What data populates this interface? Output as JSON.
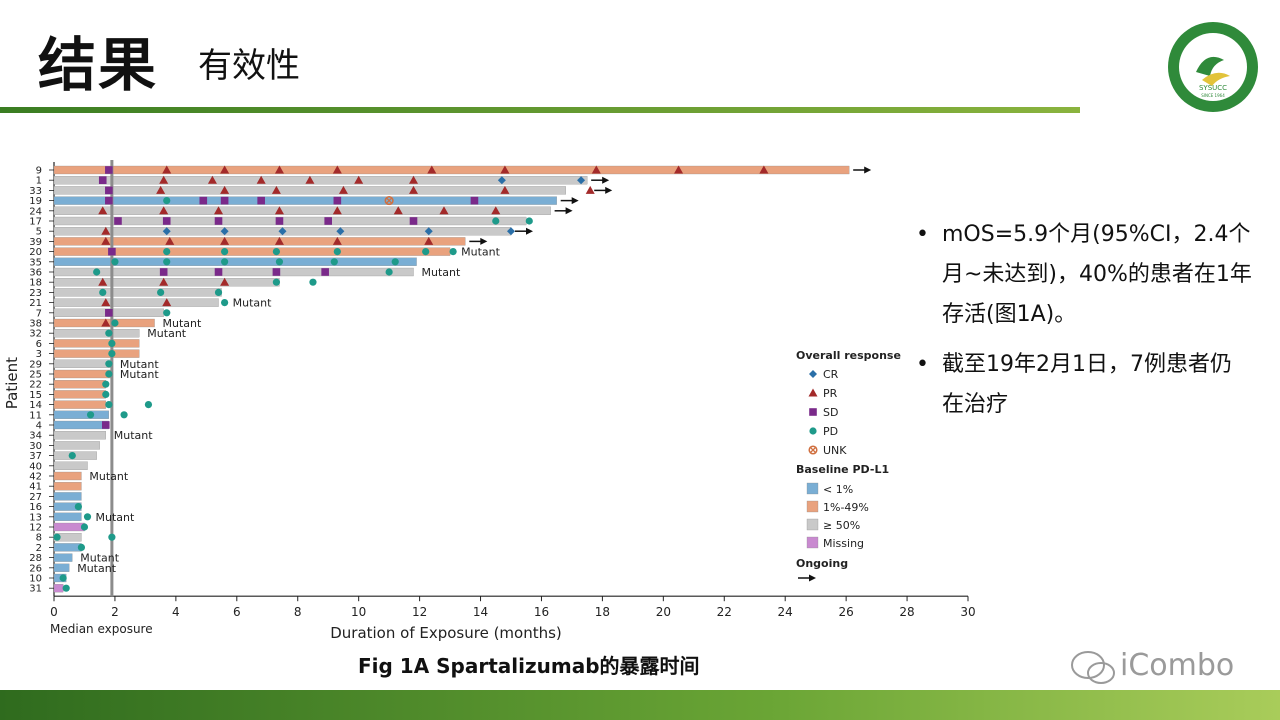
{
  "slide": {
    "title": "结果",
    "subtitle": "有效性",
    "caption": "Fig 1A Spartalizumab的暴露时间",
    "watermark": "iCombo",
    "colors": {
      "accent_green": "#4f8f2a",
      "band_dark": "#2f6b1e",
      "band_light": "#a9cc5a"
    }
  },
  "logo": {
    "text_top": "中山大學肿瘤防治中心",
    "text_ring": "SUN YAT-SEN UNIVERSITY CANCER CENTER",
    "acronym": "SYSUCC",
    "since": "SINCE 1964"
  },
  "bullets": [
    "mOS=5.9个月(95%CI，2.4个月~未达到)，40%的患者在1年存活(图1A)。",
    "截至19年2月1日，7例患者仍在治疗"
  ],
  "chart_data": {
    "type": "swimmer",
    "xlabel": "Duration of Exposure (months)",
    "ylabel": "Patient",
    "xlim": [
      0,
      30
    ],
    "xticks": [
      0,
      2,
      4,
      6,
      8,
      10,
      12,
      14,
      16,
      18,
      20,
      22,
      24,
      26,
      28,
      30
    ],
    "median_exposure": 1.9,
    "median_label": "Median exposure",
    "legend": {
      "response_title": "Overall response",
      "responses": [
        {
          "key": "CR",
          "label": "CR",
          "color": "#2a6fa8",
          "marker": "diamond"
        },
        {
          "key": "PR",
          "label": "PR",
          "color": "#a32a2a",
          "marker": "triangle"
        },
        {
          "key": "SD",
          "label": "SD",
          "color": "#7a2a8a",
          "marker": "square"
        },
        {
          "key": "PD",
          "label": "PD",
          "color": "#1e9a8a",
          "marker": "circle"
        },
        {
          "key": "UNK",
          "label": "UNK",
          "color": "#d07040",
          "marker": "xcircle"
        }
      ],
      "pdl1_title": "Baseline PD-L1",
      "pdl1": [
        {
          "key": "lt1",
          "label": "< 1%",
          "color": "#7aaed4"
        },
        {
          "key": "1to49",
          "label": "1%-49%",
          "color": "#e9a27e"
        },
        {
          "key": "ge50",
          "label": "≥ 50%",
          "color": "#c9c9c9"
        },
        {
          "key": "missing",
          "label": "Missing",
          "color": "#c98ad0"
        }
      ],
      "ongoing_label": "Ongoing"
    },
    "patients": [
      {
        "id": "9",
        "pdl1": "1to49",
        "duration": 26.1,
        "ongoing": true,
        "label": "",
        "events": [
          [
            "SD",
            1.8
          ],
          [
            "PR",
            3.7
          ],
          [
            "PR",
            5.6
          ],
          [
            "PR",
            7.4
          ],
          [
            "PR",
            9.3
          ],
          [
            "PR",
            12.4
          ],
          [
            "PR",
            14.8
          ],
          [
            "PR",
            17.8
          ],
          [
            "PR",
            20.5
          ],
          [
            "PR",
            23.3
          ]
        ]
      },
      {
        "id": "1",
        "pdl1": "ge50",
        "duration": 17.5,
        "ongoing": true,
        "label": "",
        "events": [
          [
            "SD",
            1.6
          ],
          [
            "PR",
            3.6
          ],
          [
            "PR",
            5.2
          ],
          [
            "PR",
            6.8
          ],
          [
            "PR",
            8.4
          ],
          [
            "PR",
            10.0
          ],
          [
            "PR",
            11.8
          ],
          [
            "CR",
            14.7
          ],
          [
            "CR",
            17.3
          ]
        ]
      },
      {
        "id": "33",
        "pdl1": "ge50",
        "duration": 16.8,
        "ongoing": true,
        "label": "",
        "events": [
          [
            "SD",
            1.8
          ],
          [
            "PR",
            3.5
          ],
          [
            "PR",
            5.6
          ],
          [
            "PR",
            7.3
          ],
          [
            "PR",
            9.5
          ],
          [
            "PR",
            11.8
          ],
          [
            "PR",
            14.8
          ],
          [
            "PR",
            17.6
          ]
        ]
      },
      {
        "id": "19",
        "pdl1": "lt1",
        "duration": 16.5,
        "ongoing": true,
        "label": "",
        "events": [
          [
            "SD",
            1.8
          ],
          [
            "PD",
            3.7
          ],
          [
            "SD",
            4.9
          ],
          [
            "SD",
            5.6
          ],
          [
            "SD",
            6.8
          ],
          [
            "SD",
            9.3
          ],
          [
            "UNK",
            11.0
          ],
          [
            "SD",
            13.8
          ]
        ]
      },
      {
        "id": "24",
        "pdl1": "ge50",
        "duration": 16.3,
        "ongoing": true,
        "label": "",
        "events": [
          [
            "PR",
            1.6
          ],
          [
            "PR",
            3.6
          ],
          [
            "PR",
            5.4
          ],
          [
            "PR",
            7.4
          ],
          [
            "PR",
            9.3
          ],
          [
            "PR",
            11.3
          ],
          [
            "PR",
            12.8
          ],
          [
            "PR",
            14.5
          ]
        ]
      },
      {
        "id": "17",
        "pdl1": "ge50",
        "duration": 15.5,
        "ongoing": false,
        "label": "",
        "events": [
          [
            "SD",
            2.1
          ],
          [
            "SD",
            3.7
          ],
          [
            "SD",
            5.4
          ],
          [
            "SD",
            7.4
          ],
          [
            "SD",
            9.0
          ],
          [
            "SD",
            11.8
          ],
          [
            "PD",
            14.5
          ],
          [
            "PD",
            15.6
          ]
        ]
      },
      {
        "id": "5",
        "pdl1": "ge50",
        "duration": 15.0,
        "ongoing": true,
        "label": "",
        "events": [
          [
            "PR",
            1.7
          ],
          [
            "CR",
            3.7
          ],
          [
            "CR",
            5.6
          ],
          [
            "CR",
            7.5
          ],
          [
            "CR",
            9.4
          ],
          [
            "CR",
            12.3
          ],
          [
            "CR",
            15.0
          ]
        ]
      },
      {
        "id": "39",
        "pdl1": "1to49",
        "duration": 13.5,
        "ongoing": true,
        "label": "",
        "events": [
          [
            "PR",
            1.7
          ],
          [
            "PR",
            3.8
          ],
          [
            "PR",
            5.6
          ],
          [
            "PR",
            7.4
          ],
          [
            "PR",
            9.3
          ],
          [
            "PR",
            12.3
          ]
        ]
      },
      {
        "id": "20",
        "pdl1": "1to49",
        "duration": 13.0,
        "ongoing": false,
        "label": "Mutant",
        "events": [
          [
            "SD",
            1.9
          ],
          [
            "PD",
            3.7
          ],
          [
            "PD",
            5.6
          ],
          [
            "PD",
            7.3
          ],
          [
            "PD",
            9.3
          ],
          [
            "PD",
            12.2
          ],
          [
            "PD",
            13.1
          ]
        ]
      },
      {
        "id": "35",
        "pdl1": "lt1",
        "duration": 11.9,
        "ongoing": false,
        "label": "",
        "events": [
          [
            "PD",
            2.0
          ],
          [
            "PD",
            3.7
          ],
          [
            "PD",
            5.6
          ],
          [
            "PD",
            7.4
          ],
          [
            "PD",
            9.2
          ],
          [
            "PD",
            11.2
          ]
        ]
      },
      {
        "id": "36",
        "pdl1": "ge50",
        "duration": 11.8,
        "ongoing": false,
        "label": "Mutant",
        "events": [
          [
            "PD",
            1.4
          ],
          [
            "SD",
            3.6
          ],
          [
            "SD",
            5.4
          ],
          [
            "SD",
            7.3
          ],
          [
            "SD",
            8.9
          ],
          [
            "PD",
            11.0
          ]
        ]
      },
      {
        "id": "18",
        "pdl1": "ge50",
        "duration": 7.4,
        "ongoing": false,
        "label": "",
        "events": [
          [
            "PR",
            1.6
          ],
          [
            "PR",
            3.6
          ],
          [
            "PR",
            5.6
          ],
          [
            "PD",
            7.3
          ],
          [
            "PD",
            8.5
          ]
        ]
      },
      {
        "id": "23",
        "pdl1": "ge50",
        "duration": 5.5,
        "ongoing": false,
        "label": "",
        "events": [
          [
            "PD",
            1.6
          ],
          [
            "PD",
            3.5
          ],
          [
            "PD",
            5.4
          ]
        ]
      },
      {
        "id": "21",
        "pdl1": "ge50",
        "duration": 5.4,
        "ongoing": false,
        "label": "Mutant",
        "events": [
          [
            "PR",
            1.7
          ],
          [
            "PR",
            3.7
          ],
          [
            "PD",
            5.6
          ]
        ]
      },
      {
        "id": "7",
        "pdl1": "ge50",
        "duration": 3.6,
        "ongoing": false,
        "label": "",
        "events": [
          [
            "SD",
            1.8
          ],
          [
            "PD",
            3.7
          ]
        ]
      },
      {
        "id": "38",
        "pdl1": "1to49",
        "duration": 3.3,
        "ongoing": false,
        "label": "Mutant",
        "events": [
          [
            "PR",
            1.7
          ],
          [
            "PD",
            2.0
          ]
        ]
      },
      {
        "id": "32",
        "pdl1": "ge50",
        "duration": 2.8,
        "ongoing": false,
        "label": "Mutant",
        "events": [
          [
            "PD",
            1.8
          ]
        ]
      },
      {
        "id": "6",
        "pdl1": "1to49",
        "duration": 2.8,
        "ongoing": false,
        "label": "",
        "events": [
          [
            "PD",
            1.9
          ]
        ]
      },
      {
        "id": "3",
        "pdl1": "1to49",
        "duration": 2.8,
        "ongoing": false,
        "label": "",
        "events": [
          [
            "PD",
            1.9
          ]
        ]
      },
      {
        "id": "29",
        "pdl1": "ge50",
        "duration": 1.9,
        "ongoing": false,
        "label": "Mutant",
        "events": [
          [
            "PD",
            1.8
          ]
        ]
      },
      {
        "id": "25",
        "pdl1": "1to49",
        "duration": 1.9,
        "ongoing": false,
        "label": "Mutant",
        "events": [
          [
            "PD",
            1.8
          ]
        ]
      },
      {
        "id": "22",
        "pdl1": "1to49",
        "duration": 1.7,
        "ongoing": false,
        "label": "",
        "events": [
          [
            "PD",
            1.7
          ]
        ]
      },
      {
        "id": "15",
        "pdl1": "1to49",
        "duration": 1.7,
        "ongoing": false,
        "label": "",
        "events": [
          [
            "PD",
            1.7
          ]
        ]
      },
      {
        "id": "14",
        "pdl1": "1to49",
        "duration": 1.7,
        "ongoing": false,
        "label": "",
        "events": [
          [
            "PD",
            1.8
          ],
          [
            "PD",
            3.1
          ]
        ]
      },
      {
        "id": "11",
        "pdl1": "lt1",
        "duration": 1.8,
        "ongoing": false,
        "label": "",
        "events": [
          [
            "PD",
            1.2
          ],
          [
            "PD",
            2.3
          ]
        ]
      },
      {
        "id": "4",
        "pdl1": "lt1",
        "duration": 1.8,
        "ongoing": false,
        "label": "",
        "events": [
          [
            "SD",
            1.7
          ]
        ]
      },
      {
        "id": "34",
        "pdl1": "ge50",
        "duration": 1.7,
        "ongoing": false,
        "label": "Mutant",
        "events": []
      },
      {
        "id": "30",
        "pdl1": "ge50",
        "duration": 1.5,
        "ongoing": false,
        "label": "",
        "events": []
      },
      {
        "id": "37",
        "pdl1": "ge50",
        "duration": 1.4,
        "ongoing": false,
        "label": "",
        "events": [
          [
            "PD",
            0.6
          ]
        ]
      },
      {
        "id": "40",
        "pdl1": "ge50",
        "duration": 1.1,
        "ongoing": false,
        "label": "",
        "events": []
      },
      {
        "id": "42",
        "pdl1": "1to49",
        "duration": 0.9,
        "ongoing": false,
        "label": "Mutant",
        "events": []
      },
      {
        "id": "41",
        "pdl1": "1to49",
        "duration": 0.9,
        "ongoing": false,
        "label": "",
        "events": []
      },
      {
        "id": "27",
        "pdl1": "lt1",
        "duration": 0.9,
        "ongoing": false,
        "label": "",
        "events": []
      },
      {
        "id": "16",
        "pdl1": "lt1",
        "duration": 0.9,
        "ongoing": false,
        "label": "",
        "events": [
          [
            "PD",
            0.8
          ]
        ]
      },
      {
        "id": "13",
        "pdl1": "lt1",
        "duration": 0.9,
        "ongoing": false,
        "label": "Mutant",
        "events": [
          [
            "PD",
            1.1
          ]
        ]
      },
      {
        "id": "12",
        "pdl1": "missing",
        "duration": 1.0,
        "ongoing": false,
        "label": "",
        "events": [
          [
            "PD",
            1.0
          ]
        ]
      },
      {
        "id": "8",
        "pdl1": "ge50",
        "duration": 0.9,
        "ongoing": false,
        "label": "",
        "events": [
          [
            "PD",
            0.1
          ],
          [
            "PD",
            1.9
          ]
        ]
      },
      {
        "id": "2",
        "pdl1": "lt1",
        "duration": 0.9,
        "ongoing": false,
        "label": "",
        "events": [
          [
            "PD",
            0.9
          ]
        ]
      },
      {
        "id": "28",
        "pdl1": "lt1",
        "duration": 0.6,
        "ongoing": false,
        "label": "Mutant",
        "events": []
      },
      {
        "id": "26",
        "pdl1": "lt1",
        "duration": 0.5,
        "ongoing": false,
        "label": "Mutant",
        "events": []
      },
      {
        "id": "10",
        "pdl1": "lt1",
        "duration": 0.4,
        "ongoing": false,
        "label": "",
        "events": [
          [
            "PD",
            0.3
          ]
        ]
      },
      {
        "id": "31",
        "pdl1": "missing",
        "duration": 0.3,
        "ongoing": false,
        "label": "",
        "events": [
          [
            "PD",
            0.4
          ]
        ]
      }
    ]
  }
}
